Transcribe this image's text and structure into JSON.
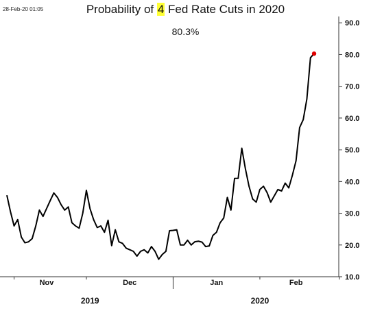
{
  "header": {
    "timestamp": "28-Feb-20 01:05",
    "title_prefix": "Probability of ",
    "title_highlight": "4",
    "title_suffix": " Fed Rate Cuts in 2020",
    "current_value_label": "80.3%"
  },
  "colors": {
    "line": "#000000",
    "last_point": "#e00000",
    "highlight": "#ffff33"
  },
  "chart_data": {
    "type": "line",
    "title": "Probability of 4 Fed Rate Cuts in 2020",
    "subtitle": "80.3%",
    "y_axis": {
      "position": "right",
      "ylim": [
        10,
        92
      ],
      "ticks": [
        "10.0",
        "20.0",
        "30.0",
        "40.0",
        "50.0",
        "60.0",
        "70.0",
        "80.0",
        "90.0"
      ],
      "tick_values": [
        10,
        20,
        30,
        40,
        50,
        60,
        70,
        80,
        90
      ]
    },
    "x_axis": {
      "month_labels": [
        "Nov",
        "Dec",
        "Jan",
        "Feb"
      ],
      "month_label_index": [
        11,
        34,
        58,
        80
      ],
      "year_labels": [
        "2019",
        "2020"
      ],
      "year_label_index": [
        23,
        70
      ],
      "year_separator_index": 46
    },
    "grid": false,
    "series": [
      {
        "values": [
          35.7,
          30.5,
          26.0,
          28.0,
          22.5,
          20.7,
          21.0,
          22.0,
          26.0,
          31.0,
          29.0,
          31.5,
          34.0,
          36.4,
          35.0,
          32.7,
          31.0,
          32.0,
          27.0,
          26.0,
          25.3,
          30.0,
          37.2,
          31.5,
          28.0,
          25.5,
          26.0,
          24.0,
          27.8,
          19.8,
          24.8,
          21.0,
          20.5,
          19.0,
          18.5,
          18.0,
          16.5,
          18.0,
          18.5,
          17.5,
          19.5,
          18.0,
          15.5,
          17.0,
          18.0,
          24.5,
          24.6,
          24.8,
          20.0,
          20.0,
          21.5,
          20.0,
          21.0,
          21.2,
          20.9,
          19.5,
          19.7,
          23.0,
          24.0,
          27.0,
          28.5,
          35.0,
          31.0,
          41.0,
          41.0,
          50.5,
          44.0,
          38.5,
          34.5,
          33.5,
          37.5,
          38.5,
          36.5,
          33.5,
          35.5,
          37.5,
          37.0,
          39.5,
          38.0,
          42.0,
          46.5,
          57.0,
          59.5,
          66.0,
          79.0,
          80.3
        ]
      }
    ]
  }
}
